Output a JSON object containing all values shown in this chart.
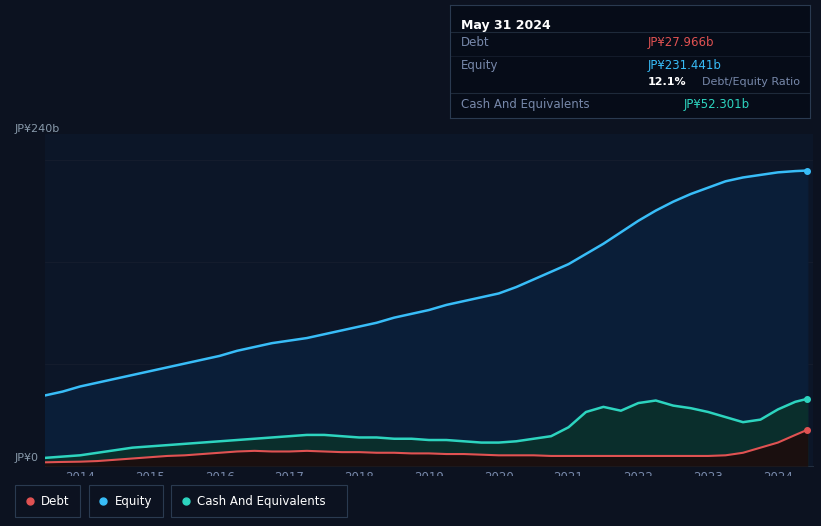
{
  "bg_color": "#0c1220",
  "chart_bg": "#0c1628",
  "tooltip": {
    "date": "May 31 2024",
    "debt_label": "Debt",
    "debt_val": "JP¥27.966b",
    "equity_label": "Equity",
    "equity_val": "JP¥231.441b",
    "ratio_pct": "12.1%",
    "ratio_label": "Debt/Equity Ratio",
    "cash_label": "Cash And Equivalents",
    "cash_val": "JP¥52.301b",
    "debt_color": "#e05252",
    "equity_color": "#38bdf8",
    "cash_color": "#2dd4bf",
    "label_color": "#7788aa",
    "ratio_pct_color": "#ffffff",
    "ratio_label_color": "#7788aa",
    "bg": "#060c18",
    "border": "#2a3a50"
  },
  "ylabel_top": "JP¥240b",
  "ylabel_bottom": "JP¥0",
  "x_ticks": [
    "2014",
    "2015",
    "2016",
    "2017",
    "2018",
    "2019",
    "2020",
    "2021",
    "2022",
    "2023",
    "2024"
  ],
  "equity_color": "#38bdf8",
  "debt_color": "#e05252",
  "cash_color": "#2dd4bf",
  "equity_fill": "#0a1e38",
  "cash_fill": "#0a2e2c",
  "debt_fill": "#1a0f0f",
  "grid_color": "#182030",
  "years": [
    2013.5,
    2013.75,
    2014.0,
    2014.25,
    2014.5,
    2014.75,
    2015.0,
    2015.25,
    2015.5,
    2015.75,
    2016.0,
    2016.25,
    2016.5,
    2016.75,
    2017.0,
    2017.25,
    2017.5,
    2017.75,
    2018.0,
    2018.25,
    2018.5,
    2018.75,
    2019.0,
    2019.25,
    2019.5,
    2019.75,
    2020.0,
    2020.25,
    2020.5,
    2020.75,
    2021.0,
    2021.25,
    2021.5,
    2021.75,
    2022.0,
    2022.25,
    2022.5,
    2022.75,
    2023.0,
    2023.25,
    2023.5,
    2023.75,
    2024.0,
    2024.25,
    2024.42
  ],
  "equity": [
    55,
    58,
    62,
    65,
    68,
    71,
    74,
    77,
    80,
    83,
    86,
    90,
    93,
    96,
    98,
    100,
    103,
    106,
    109,
    112,
    116,
    119,
    122,
    126,
    129,
    132,
    135,
    140,
    146,
    152,
    158,
    166,
    174,
    183,
    192,
    200,
    207,
    213,
    218,
    223,
    226,
    228,
    230,
    231,
    231.441
  ],
  "debt": [
    2.5,
    2.8,
    3.0,
    3.5,
    4.5,
    5.5,
    6.5,
    7.5,
    8.0,
    9.0,
    10.0,
    11.0,
    11.5,
    11.0,
    11.0,
    11.5,
    11.0,
    10.5,
    10.5,
    10.0,
    10.0,
    9.5,
    9.5,
    9.0,
    9.0,
    8.5,
    8.0,
    8.0,
    8.0,
    7.5,
    7.5,
    7.5,
    7.5,
    7.5,
    7.5,
    7.5,
    7.5,
    7.5,
    7.5,
    8.0,
    10.0,
    14.0,
    18.0,
    24.0,
    27.966
  ],
  "cash": [
    6,
    7,
    8,
    10,
    12,
    14,
    15,
    16,
    17,
    18,
    19,
    20,
    21,
    22,
    23,
    24,
    24,
    23,
    22,
    22,
    21,
    21,
    20,
    20,
    19,
    18,
    18,
    19,
    21,
    23,
    30,
    42,
    46,
    43,
    49,
    51,
    47,
    45,
    42,
    38,
    34,
    36,
    44,
    50,
    52.301
  ]
}
